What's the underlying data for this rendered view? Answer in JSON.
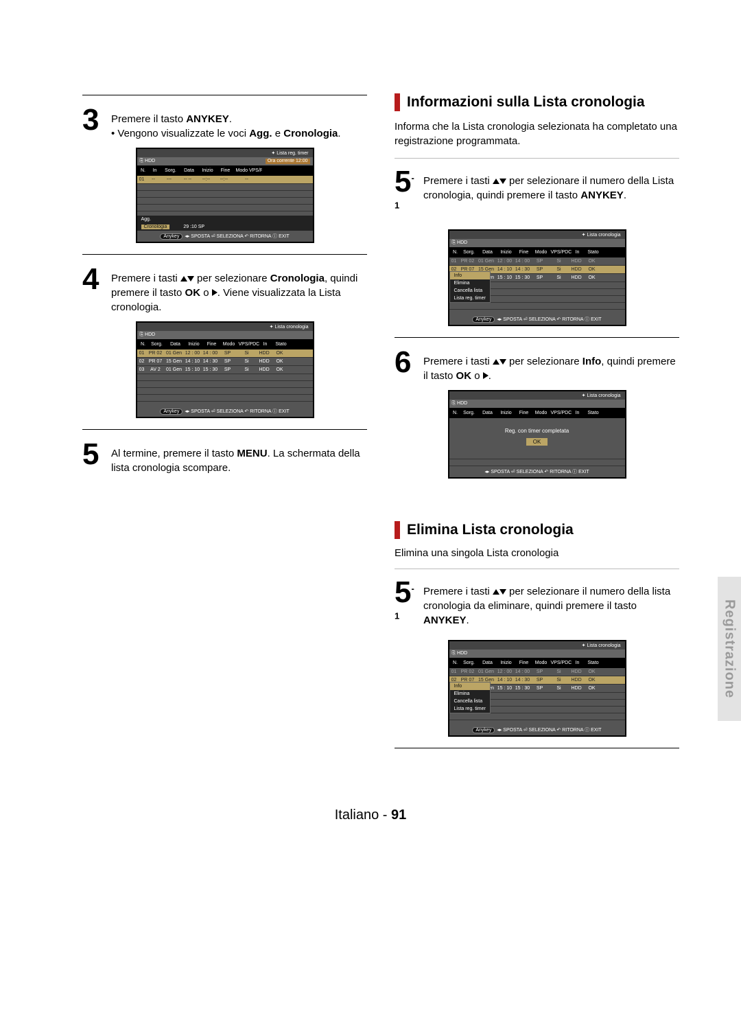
{
  "side_tab": "Registrazione",
  "footer": {
    "lang": "Italiano",
    "sep": " - ",
    "num": "91"
  },
  "left": {
    "step3": {
      "num": "3",
      "line1_a": "Premere il tasto ",
      "line1_b": "ANYKEY",
      "line1_c": ".",
      "bullet_a": "• Vengono visualizzate le voci ",
      "bullet_b": "Agg.",
      "bullet_c": " e ",
      "bullet_d": "Cronologia",
      "bullet_e": "."
    },
    "step4": {
      "num": "4",
      "a": "Premere i tasti ",
      "b": " per selezionare ",
      "c": "Cronologia",
      "d": ", quindi premere il tasto ",
      "e": "OK",
      "f": " o ",
      "g": ". Viene visualizzata la Lista cronologia."
    },
    "step5": {
      "num": "5",
      "a": "Al termine, premere il tasto ",
      "b": "MENU",
      "c": ". La schermata della lista cronologia scompare."
    }
  },
  "right": {
    "sec_info": {
      "title": "Informazioni sulla Lista cronologia",
      "desc": "Informa che la Lista cronologia selezionata ha completato una registrazione programmata."
    },
    "step5_1": {
      "num": "5",
      "sup": "-1",
      "a": "Premere i tasti ",
      "b": " per selezionare il numero della Lista cronologia, quindi premere il tasto ",
      "c": "ANYKEY",
      "d": "."
    },
    "step6": {
      "num": "6",
      "a": "Premere i tasti ",
      "b": " per selezionare ",
      "c": "Info",
      "d": ", quindi premere il tasto ",
      "e": "OK",
      "f": " o ",
      "g": "."
    },
    "sec_del": {
      "title": "Elimina Lista cronologia",
      "desc": "Elimina una singola Lista cronologia"
    },
    "step5_1b": {
      "num": "5",
      "sup": "-1",
      "a": "Premere i tasti ",
      "b": " per selezionare il numero della lista cronologia da eliminare, quindi premere il tasto ",
      "c": "ANYKEY",
      "d": "."
    }
  },
  "osd": {
    "timer_title": "✦  Lista reg. timer",
    "crono_title": "✦  Lista cronologia",
    "hdd": "HDD",
    "ora": "Ora corrente 12:00",
    "head_a": [
      "N.",
      "In",
      "Sorg.",
      "Data",
      "Inizio",
      "Fine",
      "Modo  VPS/PDC"
    ],
    "head_b": [
      "N.",
      "Sorg.",
      "Data",
      "Inizio",
      "Fine",
      "Modo",
      "VPS/PDC",
      "In",
      "Stato"
    ],
    "row_a1": [
      "01",
      "--",
      "---",
      "-- --",
      "--:--",
      "--:--",
      "--"
    ],
    "rows_b": [
      [
        "01",
        "PR 02",
        "01 Gen",
        "12 : 00",
        "14 : 00",
        "SP",
        "Si",
        "HDD",
        "OK"
      ],
      [
        "02",
        "PR 07",
        "15 Gen",
        "14 : 10",
        "14 : 30",
        "SP",
        "Si",
        "HDD",
        "OK"
      ],
      [
        "03",
        "AV 2",
        "01 Gen",
        "15 : 10",
        "15 : 30",
        "SP",
        "Si",
        "HDD",
        "OK"
      ]
    ],
    "menu_agg": "Agg.",
    "menu_crono": "Cronologia",
    "menu_crono_time": "29 :10  SP",
    "side_menu": [
      "Info",
      "Elimina",
      "Cancella lista",
      "Lista reg. timer"
    ],
    "foot_anykey": "Anykey",
    "foot": "◂▸ SPOSTA   ⏎ SELEZIONA   ↶ RITORNA   ⓘ EXIT",
    "msg_done": "Reg. con timer completata",
    "ok": "OK"
  }
}
